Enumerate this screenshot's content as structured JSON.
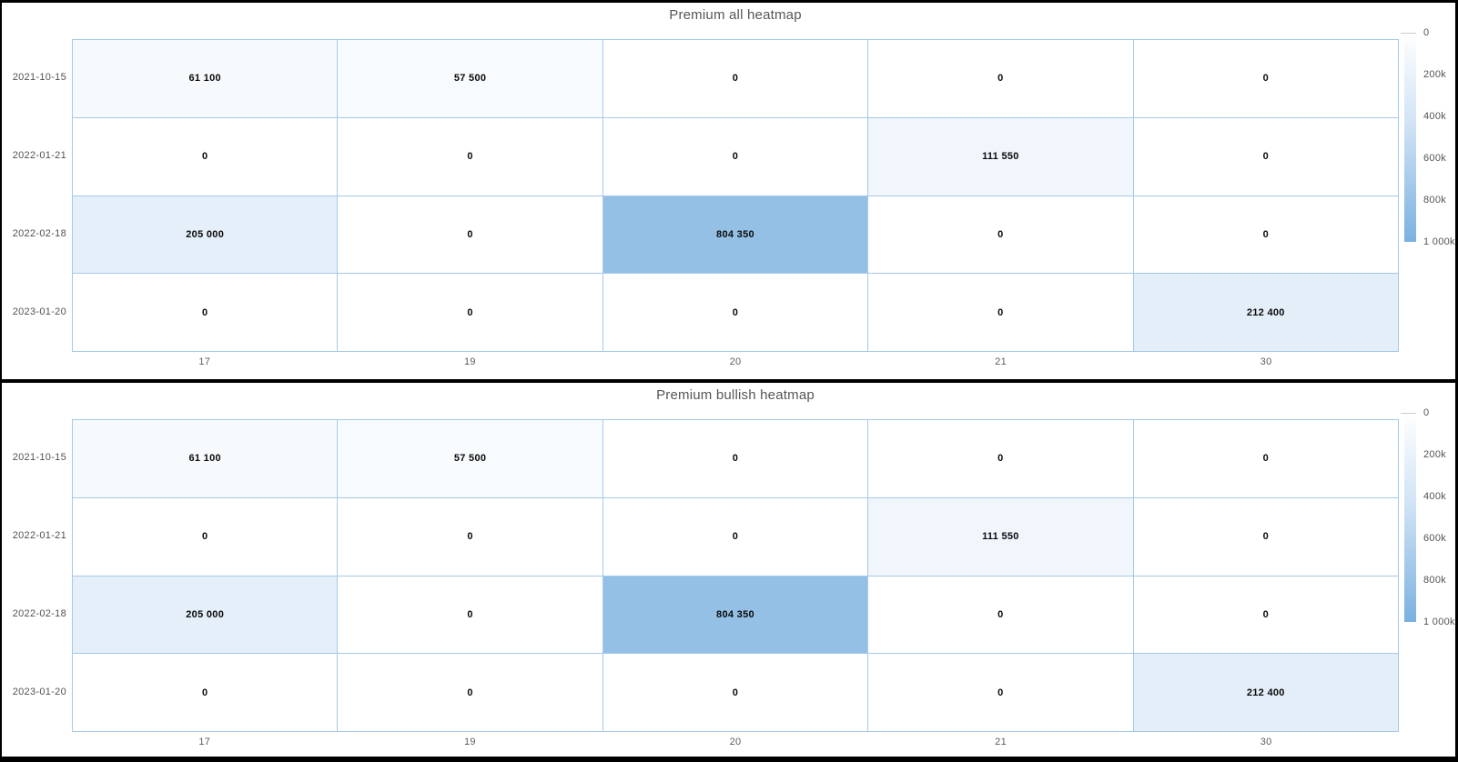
{
  "page": {
    "background": "#ffffff",
    "frame_color": "#000000"
  },
  "colors": {
    "grid_line": "#a5c9ea",
    "title_text": "#565656",
    "axis_text": "#525252",
    "cell_text": "#0a0a0a",
    "legend_text": "#555555"
  },
  "scale": {
    "min": 0,
    "max": 1000000,
    "min_color": "#ffffff",
    "max_color": "#7ab1e0"
  },
  "chart_data": [
    {
      "type": "heatmap",
      "title": "Premium all heatmap",
      "x_categories": [
        "17",
        "19",
        "20",
        "21",
        "30"
      ],
      "y_categories": [
        "2021-10-15",
        "2022-01-21",
        "2022-02-18",
        "2023-01-20"
      ],
      "values": [
        [
          61100,
          57500,
          0,
          0,
          0
        ],
        [
          0,
          0,
          0,
          111550,
          0
        ],
        [
          205000,
          0,
          804350,
          0,
          0
        ],
        [
          0,
          0,
          0,
          0,
          212400
        ]
      ],
      "cell_labels": [
        [
          "61 100",
          "57 500",
          "0",
          "0",
          "0"
        ],
        [
          "0",
          "0",
          "0",
          "111 550",
          "0"
        ],
        [
          "205 000",
          "0",
          "804 350",
          "0",
          "0"
        ],
        [
          "0",
          "0",
          "0",
          "0",
          "212 400"
        ]
      ],
      "legend": {
        "position": "right",
        "ticks": [
          "0",
          "200k",
          "400k",
          "600k",
          "800k",
          "1 000k"
        ]
      }
    },
    {
      "type": "heatmap",
      "title": "Premium bullish heatmap",
      "x_categories": [
        "17",
        "19",
        "20",
        "21",
        "30"
      ],
      "y_categories": [
        "2021-10-15",
        "2022-01-21",
        "2022-02-18",
        "2023-01-20"
      ],
      "values": [
        [
          61100,
          57500,
          0,
          0,
          0
        ],
        [
          0,
          0,
          0,
          111550,
          0
        ],
        [
          205000,
          0,
          804350,
          0,
          0
        ],
        [
          0,
          0,
          0,
          0,
          212400
        ]
      ],
      "cell_labels": [
        [
          "61 100",
          "57 500",
          "0",
          "0",
          "0"
        ],
        [
          "0",
          "0",
          "0",
          "111 550",
          "0"
        ],
        [
          "205 000",
          "0",
          "804 350",
          "0",
          "0"
        ],
        [
          "0",
          "0",
          "0",
          "0",
          "212 400"
        ]
      ],
      "legend": {
        "position": "right",
        "ticks": [
          "0",
          "200k",
          "400k",
          "600k",
          "800k",
          "1 000k"
        ]
      }
    }
  ]
}
